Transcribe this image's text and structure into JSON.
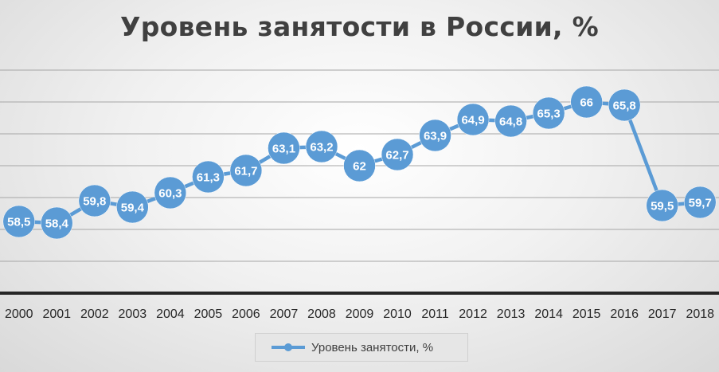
{
  "chart_data": {
    "type": "line",
    "title": "Уровень занятости в России, %",
    "xlabel": "",
    "ylabel": "",
    "categories": [
      "2000",
      "2001",
      "2002",
      "2003",
      "2004",
      "2005",
      "2006",
      "2007",
      "2008",
      "2009",
      "2010",
      "2011",
      "2012",
      "2013",
      "2014",
      "2015",
      "2016",
      "2017",
      "2018"
    ],
    "series": [
      {
        "name": "Уровень занятости, %",
        "values": [
          58.5,
          58.4,
          59.8,
          59.4,
          60.3,
          61.3,
          61.7,
          63.1,
          63.2,
          62.0,
          62.7,
          63.9,
          64.9,
          64.8,
          65.3,
          66.0,
          65.8,
          59.5,
          59.7
        ],
        "labels": [
          "58,5",
          "58,4",
          "59,8",
          "59,4",
          "60,3",
          "61,3",
          "61,7",
          "63,1",
          "63,2",
          "62",
          "62,7",
          "63,9",
          "64,9",
          "64,8",
          "65,3",
          "66",
          "65,8",
          "59,5",
          "59,7"
        ],
        "color": "#5b9bd5"
      }
    ],
    "ylim": [
      54,
      68
    ],
    "y_axis_visible": false,
    "grid": true,
    "legend_position": "bottom"
  }
}
